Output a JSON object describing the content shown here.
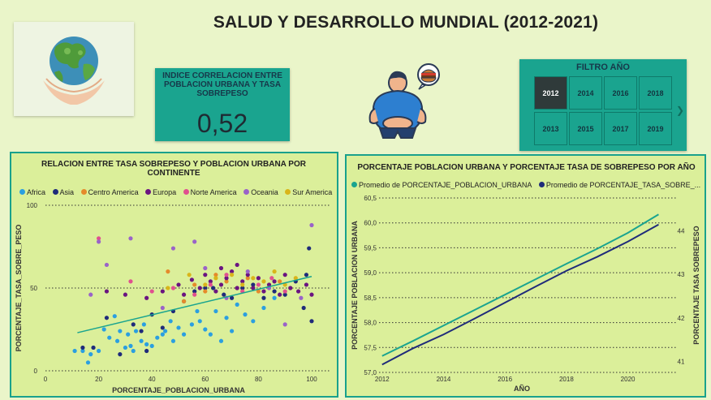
{
  "header": {
    "title": "SALUD Y DESARROLLO MUNDIAL (2012-2021)"
  },
  "kpi": {
    "label": "INDICE CORRELACION ENTRE POBLACION URBANA Y TASA SOBREPESO",
    "value": "0,52"
  },
  "filter": {
    "title": "FILTRO AÑO",
    "years": [
      "2012",
      "2014",
      "2016",
      "2018",
      "2013",
      "2015",
      "2017",
      "2019"
    ],
    "selected": "2012"
  },
  "scatter": {
    "title": "RELACION ENTRE TASA SOBREPESO Y POBLACION URBANA POR CONTINENTE",
    "legend": [
      {
        "name": "Africa",
        "color": "#2b9fe0"
      },
      {
        "name": "Asia",
        "color": "#1f2b7a"
      },
      {
        "name": "Centro America",
        "color": "#e58a2b"
      },
      {
        "name": "Europa",
        "color": "#6a1580"
      },
      {
        "name": "Norte America",
        "color": "#e0508f"
      },
      {
        "name": "Oceania",
        "color": "#9a63c8"
      },
      {
        "name": "Sur America",
        "color": "#d9b51a"
      }
    ],
    "xlabel": "PORCENTAJE_POBLACION_URBANA",
    "ylabel": "PORCENTAJE_TASA_SOBRE_PESO",
    "xticks": [
      "0",
      "20",
      "40",
      "60",
      "80",
      "100"
    ],
    "yticks": [
      "0",
      "50",
      "100"
    ]
  },
  "line": {
    "title": "PORCENTAJE POBLACION URBANA Y PORCENTAJE TASA DE SOBREPESO POR AÑO",
    "legend": [
      {
        "name": "Promedio de PORCENTAJE_POBLACION_URBANA",
        "color": "#1aa48f"
      },
      {
        "name": "Promedio de PORCENTAJE_TASA_SOBRE_...",
        "color": "#1f2b7a"
      }
    ],
    "xlabel": "AÑO",
    "ylabel_left": "PORCENTAJE POBLACION URBANA",
    "ylabel_right": "PORCENTAJE TASA SOBREPESO",
    "xticks": [
      "2012",
      "2014",
      "2016",
      "2018",
      "2020"
    ],
    "yticks_left": [
      "57,0",
      "57,5",
      "58,0",
      "58,5",
      "59,0",
      "59,5",
      "60,0",
      "60,5"
    ],
    "yticks_right": [
      "41",
      "42",
      "43",
      "44"
    ]
  },
  "chart_data": [
    {
      "type": "scatter",
      "title": "RELACION ENTRE TASA SOBREPESO Y POBLACION URBANA POR CONTINENTE",
      "xlabel": "PORCENTAJE_POBLACION_URBANA",
      "ylabel": "PORCENTAJE_TASA_SOBRE_PESO",
      "xlim": [
        0,
        100
      ],
      "ylim": [
        0,
        100
      ],
      "trendline": {
        "x": [
          12,
          100
        ],
        "y": [
          23,
          57
        ]
      },
      "series": [
        {
          "name": "Africa",
          "color": "#2b9fe0",
          "points": [
            [
              11,
              12
            ],
            [
              14,
              12
            ],
            [
              16,
              5
            ],
            [
              17,
              10
            ],
            [
              18,
              14
            ],
            [
              20,
              12
            ],
            [
              22,
              25
            ],
            [
              24,
              20
            ],
            [
              26,
              33
            ],
            [
              27,
              18
            ],
            [
              28,
              24
            ],
            [
              30,
              14
            ],
            [
              31,
              22
            ],
            [
              32,
              15
            ],
            [
              33,
              12
            ],
            [
              34,
              24
            ],
            [
              36,
              18
            ],
            [
              37,
              28
            ],
            [
              38,
              16
            ],
            [
              40,
              15
            ],
            [
              42,
              20
            ],
            [
              44,
              22
            ],
            [
              45,
              24
            ],
            [
              47,
              30
            ],
            [
              48,
              18
            ],
            [
              50,
              26
            ],
            [
              52,
              22
            ],
            [
              55,
              28
            ],
            [
              57,
              36
            ],
            [
              58,
              30
            ],
            [
              60,
              25
            ],
            [
              62,
              22
            ],
            [
              64,
              36
            ],
            [
              66,
              18
            ],
            [
              68,
              32
            ],
            [
              70,
              24
            ],
            [
              72,
              40
            ],
            [
              75,
              34
            ],
            [
              78,
              30
            ],
            [
              82,
              38
            ],
            [
              86,
              44
            ]
          ]
        },
        {
          "name": "Asia",
          "color": "#1f2b7a",
          "points": [
            [
              14,
              14
            ],
            [
              18,
              14
            ],
            [
              23,
              32
            ],
            [
              28,
              10
            ],
            [
              33,
              28
            ],
            [
              36,
              24
            ],
            [
              38,
              12
            ],
            [
              40,
              34
            ],
            [
              44,
              26
            ],
            [
              48,
              36
            ],
            [
              52,
              42
            ],
            [
              56,
              48
            ],
            [
              60,
              50
            ],
            [
              63,
              50
            ],
            [
              67,
              46
            ],
            [
              70,
              44
            ],
            [
              74,
              50
            ],
            [
              78,
              52
            ],
            [
              82,
              44
            ],
            [
              86,
              48
            ],
            [
              90,
              46
            ],
            [
              94,
              54
            ],
            [
              97,
              38
            ],
            [
              99,
              74
            ],
            [
              100,
              30
            ],
            [
              98,
              58
            ]
          ]
        },
        {
          "name": "Centro America",
          "color": "#e58a2b",
          "points": [
            [
              46,
              60
            ],
            [
              52,
              42
            ],
            [
              56,
              52
            ],
            [
              60,
              48
            ],
            [
              64,
              58
            ],
            [
              68,
              54
            ],
            [
              72,
              50
            ],
            [
              76,
              56
            ],
            [
              80,
              48
            ],
            [
              84,
              52
            ],
            [
              88,
              54
            ],
            [
              92,
              50
            ]
          ]
        },
        {
          "name": "Europa",
          "color": "#6a1580",
          "points": [
            [
              23,
              48
            ],
            [
              30,
              46
            ],
            [
              38,
              44
            ],
            [
              44,
              48
            ],
            [
              50,
              52
            ],
            [
              52,
              46
            ],
            [
              55,
              55
            ],
            [
              58,
              50
            ],
            [
              60,
              58
            ],
            [
              62,
              54
            ],
            [
              64,
              48
            ],
            [
              66,
              52
            ],
            [
              68,
              56
            ],
            [
              70,
              60
            ],
            [
              72,
              50
            ],
            [
              74,
              54
            ],
            [
              76,
              58
            ],
            [
              78,
              50
            ],
            [
              80,
              56
            ],
            [
              82,
              48
            ],
            [
              84,
              52
            ],
            [
              86,
              54
            ],
            [
              88,
              46
            ],
            [
              90,
              58
            ],
            [
              92,
              50
            ],
            [
              95,
              48
            ],
            [
              98,
              52
            ],
            [
              100,
              46
            ],
            [
              72,
              64
            ],
            [
              66,
              62
            ]
          ]
        },
        {
          "name": "Norte America",
          "color": "#e0508f",
          "points": [
            [
              20,
              80
            ],
            [
              32,
              54
            ],
            [
              40,
              48
            ],
            [
              48,
              50
            ],
            [
              56,
              46
            ],
            [
              62,
              52
            ],
            [
              68,
              58
            ],
            [
              74,
              48
            ],
            [
              80,
              52
            ],
            [
              85,
              56
            ],
            [
              90,
              48
            ]
          ]
        },
        {
          "name": "Oceania",
          "color": "#9a63c8",
          "points": [
            [
              17,
              46
            ],
            [
              20,
              78
            ],
            [
              23,
              64
            ],
            [
              32,
              80
            ],
            [
              44,
              38
            ],
            [
              48,
              74
            ],
            [
              56,
              78
            ],
            [
              60,
              62
            ],
            [
              68,
              44
            ],
            [
              76,
              60
            ],
            [
              84,
              50
            ],
            [
              90,
              28
            ],
            [
              100,
              88
            ],
            [
              96,
              44
            ]
          ]
        },
        {
          "name": "Sur America",
          "color": "#d9b51a",
          "points": [
            [
              46,
              50
            ],
            [
              54,
              58
            ],
            [
              60,
              52
            ],
            [
              64,
              56
            ],
            [
              70,
              58
            ],
            [
              74,
              52
            ],
            [
              78,
              56
            ],
            [
              82,
              54
            ],
            [
              86,
              60
            ],
            [
              90,
              52
            ],
            [
              94,
              56
            ]
          ]
        }
      ]
    },
    {
      "type": "line",
      "title": "PORCENTAJE POBLACION URBANA Y PORCENTAJE TASA DE SOBREPESO POR AÑO",
      "xlabel": "AÑO",
      "ylabel": "PORCENTAJE POBLACION URBANA",
      "ylabel_right": "PORCENTAJE TASA SOBREPESO",
      "x": [
        2012,
        2013,
        2014,
        2015,
        2016,
        2017,
        2018,
        2019,
        2020,
        2021
      ],
      "xlim": [
        2011.9,
        2021.2
      ],
      "ylim": [
        57.0,
        60.5
      ],
      "ylim_right": [
        40.75,
        44.75
      ],
      "series": [
        {
          "name": "Promedio de PORCENTAJE_POBLACION_URBANA",
          "axis": "left",
          "values": [
            57.33,
            57.63,
            57.94,
            58.25,
            58.56,
            58.87,
            59.18,
            59.48,
            59.8,
            60.17
          ]
        },
        {
          "name": "Promedio de PORCENTAJE_TASA_SOBRE_...",
          "axis": "right",
          "values": [
            40.93,
            41.3,
            41.62,
            41.98,
            42.35,
            42.72,
            43.08,
            43.4,
            43.75,
            44.14
          ]
        }
      ]
    }
  ]
}
